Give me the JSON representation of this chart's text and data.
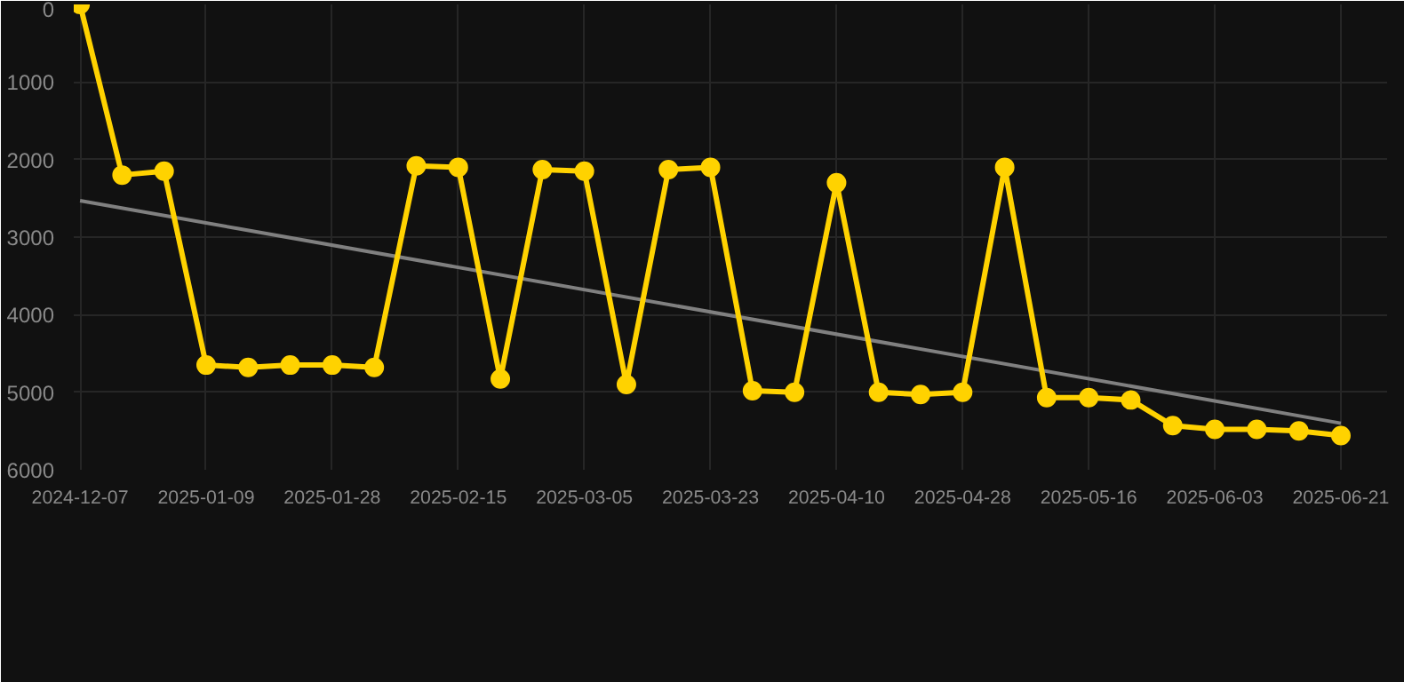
{
  "chart_data": {
    "type": "line",
    "categories": [
      "2024-12-07",
      null,
      null,
      "2025-01-09",
      null,
      null,
      "2025-01-28",
      null,
      null,
      "2025-02-15",
      null,
      null,
      "2025-03-05",
      null,
      null,
      "2025-03-23",
      null,
      null,
      "2025-04-10",
      null,
      null,
      "2025-04-28",
      null,
      null,
      "2025-05-16",
      null,
      null,
      "2025-06-03",
      null,
      null,
      "2025-06-21"
    ],
    "series": [
      {
        "color": "#ffd200",
        "marker": "circle",
        "values": [
          0,
          2200,
          2150,
          4650,
          4680,
          4650,
          4650,
          4680,
          2080,
          2100,
          4830,
          2130,
          2150,
          4900,
          2130,
          2100,
          4980,
          5000,
          2300,
          5000,
          5030,
          5000,
          2100,
          5070,
          5070,
          5100,
          5430,
          5480,
          5480,
          5500,
          5560
        ]
      },
      {
        "type": "line",
        "color": "#808080",
        "marker": "none",
        "values": [
          2530,
          null,
          null,
          null,
          null,
          null,
          null,
          null,
          null,
          null,
          null,
          null,
          null,
          null,
          null,
          null,
          null,
          null,
          null,
          null,
          null,
          null,
          null,
          null,
          null,
          null,
          null,
          null,
          null,
          null,
          5400
        ]
      }
    ],
    "ylim": [
      6000,
      0
    ],
    "yticks": [
      0,
      1000,
      2000,
      3000,
      4000,
      5000,
      6000
    ],
    "grid": true
  }
}
